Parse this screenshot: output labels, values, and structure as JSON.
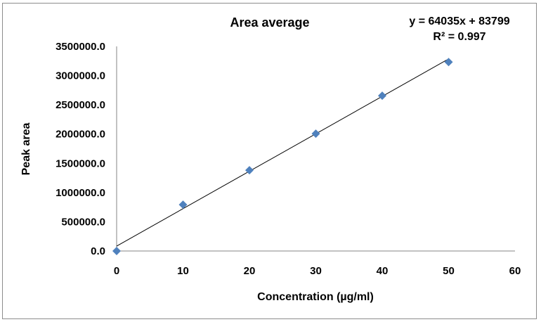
{
  "chart_data": {
    "type": "scatter",
    "title": "Area average",
    "xlabel": "Concentration (µg/ml)",
    "ylabel": "Peak area",
    "xlim": [
      0,
      60
    ],
    "ylim": [
      0,
      3500000
    ],
    "x_ticks": [
      "0",
      "10",
      "20",
      "30",
      "40",
      "50",
      "60"
    ],
    "y_ticks": [
      "0.0",
      "500000.0",
      "1000000.0",
      "1500000.0",
      "2000000.0",
      "2500000.0",
      "3000000.0",
      "3500000.0"
    ],
    "grid": false,
    "legend": "none",
    "series": [
      {
        "name": "Area average",
        "marker": "diamond",
        "color": "#4f81bd",
        "x": [
          0,
          10,
          20,
          30,
          40,
          50
        ],
        "y": [
          0,
          793000,
          1382000,
          2007000,
          2656000,
          3233000
        ]
      }
    ],
    "trendline": {
      "type": "linear",
      "slope": 64035,
      "intercept": 83799,
      "equation": "y = 64035x + 83799",
      "r_squared": "R² = 0.997",
      "color": "#000000"
    }
  }
}
